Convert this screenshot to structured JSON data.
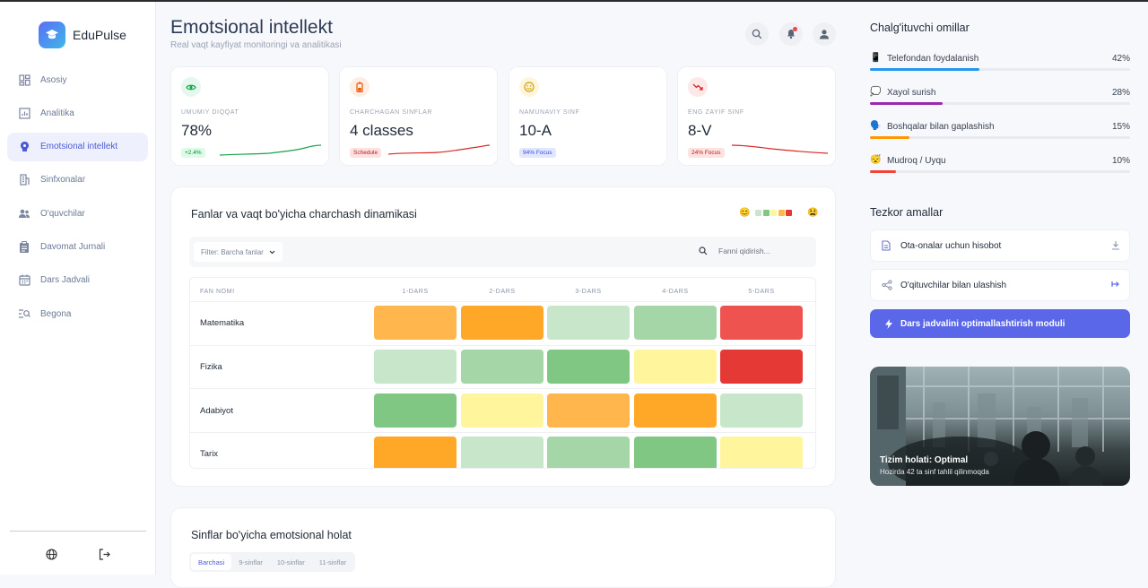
{
  "app": {
    "name": "EduPulse"
  },
  "sidebar": {
    "items": [
      {
        "label": "Asosiy",
        "icon": "dashboard-icon"
      },
      {
        "label": "Analitika",
        "icon": "analytics-icon"
      },
      {
        "label": "Emotsional intellekt",
        "icon": "brain-icon",
        "active": true
      },
      {
        "label": "Sinfxonalar",
        "icon": "building-icon"
      },
      {
        "label": "O'quvchilar",
        "icon": "students-icon"
      },
      {
        "label": "Davomat Jurnali",
        "icon": "clipboard-icon"
      },
      {
        "label": "Dars Jadvali",
        "icon": "calendar-icon"
      },
      {
        "label": "Begona",
        "icon": "search-list-icon"
      }
    ]
  },
  "header": {
    "title": "Emotsional intellekt",
    "subtitle": "Real vaqt kayfiyat monitoringi va analitikasi"
  },
  "kpis": [
    {
      "label": "UMUMIY DIQQAT",
      "value": "78%",
      "badge": "+2.4%",
      "color": "#16a34a",
      "badge_bg": "#dcfce7",
      "icon_bg": "#e6f7ef"
    },
    {
      "label": "CHARCHAGAN SINFLAR",
      "value": "4 classes",
      "badge": "Schedule",
      "color": "#dc2626",
      "badge_bg": "#fee2e2",
      "icon_bg": "#fdeee4"
    },
    {
      "label": "NAMUNAVIY SINF",
      "value": "10-A",
      "badge": "94% Focus",
      "color": "#3b4fd6",
      "badge_bg": "#e0e7ff",
      "icon_bg": "#fdf5dc"
    },
    {
      "label": "ENG ZAYIF SINF",
      "value": "8-V",
      "badge": "24% Focus",
      "color": "#dc2626",
      "badge_bg": "#fee2e2",
      "icon_bg": "#fde8e8"
    }
  ],
  "heatmap": {
    "title": "Fanlar va vaqt bo'yicha charchash dinamikasi",
    "filter_label": "Filter: Barcha fanlar",
    "search_placeholder": "Fanni qidirish...",
    "column_header": "FAN NOMI",
    "periods": [
      "1-DARS",
      "2-DARS",
      "3-DARS",
      "4-DARS",
      "5-DARS"
    ],
    "legend_colors": [
      "#c8e6c9",
      "#81c784",
      "#fff59d",
      "#ffb74d",
      "#e53935"
    ],
    "rows": [
      {
        "subject": "Matematika",
        "colors": [
          "#ffb74d",
          "#ffa726",
          "#c8e6c9",
          "#a5d6a7",
          "#ef5350"
        ]
      },
      {
        "subject": "Fizika",
        "colors": [
          "#c8e6c9",
          "#a5d6a7",
          "#81c784",
          "#fff59d",
          "#e53935"
        ]
      },
      {
        "subject": "Adabiyot",
        "colors": [
          "#81c784",
          "#fff59d",
          "#ffb74d",
          "#ffa726",
          "#c8e6c9"
        ]
      },
      {
        "subject": "Tarix",
        "colors": [
          "#ffa726",
          "#c8e6c9",
          "#a5d6a7",
          "#81c784",
          "#fff59d"
        ]
      }
    ]
  },
  "emotional_state": {
    "title": "Sinflar bo'yicha emotsional holat",
    "tabs": [
      "Barchasi",
      "9-sinflar",
      "10-sinflar",
      "11-sinflar"
    ]
  },
  "distractions": {
    "title": "Chalg'ituvchi omillar",
    "items": [
      {
        "icon": "📱",
        "label": "Telefondan foydalanish",
        "percent_text": "42%",
        "percent": 42,
        "color": "#2196f3"
      },
      {
        "icon": "💭",
        "label": "Xayol surish",
        "percent_text": "28%",
        "percent": 28,
        "color": "#9c27b0"
      },
      {
        "icon": "🗣️",
        "label": "Boshqalar bilan gaplashish",
        "percent_text": "15%",
        "percent": 15,
        "color": "#ff9800"
      },
      {
        "icon": "😴",
        "label": "Mudroq / Uyqu",
        "percent_text": "10%",
        "percent": 10,
        "color": "#f44336"
      }
    ]
  },
  "quick_actions": {
    "title": "Tezkor amallar",
    "items": [
      {
        "label": "Ota-onalar uchun hisobot",
        "icon": "document-icon",
        "trail_icon": "download-icon"
      },
      {
        "label": "O'qituvchilar bilan ulashish",
        "icon": "share-icon",
        "trail_icon": "arrow-right-icon"
      }
    ],
    "primary_label": "Dars jadvalini optimallashtirish moduli"
  },
  "status_card": {
    "title": "Tizim holati: Optimal",
    "subtitle": "Hozirda 42 ta sinf tahlil qilinmoqda"
  }
}
